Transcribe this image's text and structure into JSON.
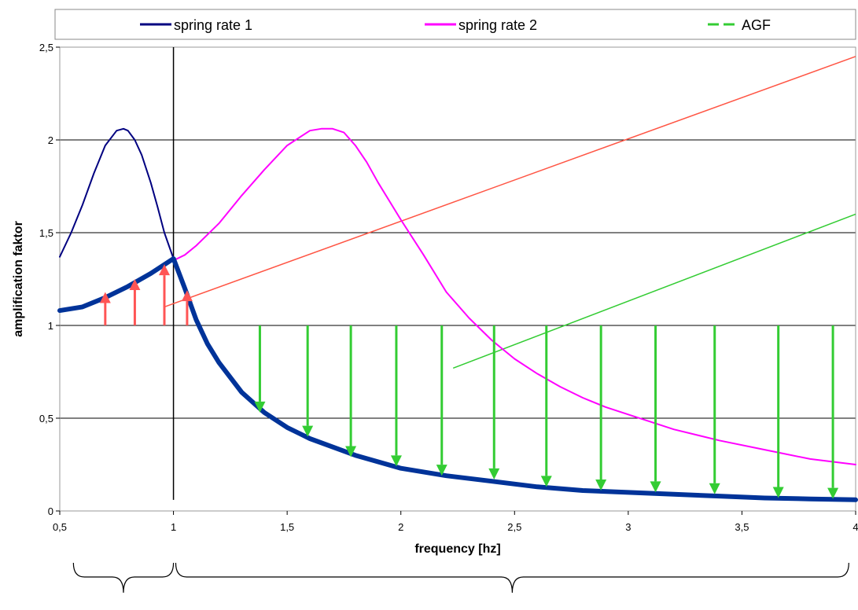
{
  "chart_data": {
    "type": "line",
    "xlabel": "frequency [hz]",
    "ylabel": "amplification faktor",
    "xlim": [
      0.5,
      4
    ],
    "ylim": [
      0,
      2.5
    ],
    "x_ticks": [
      "0,5",
      "1",
      "1,5",
      "2",
      "2,5",
      "3",
      "3,5",
      "4"
    ],
    "x_tick_values": [
      0.5,
      1,
      1.5,
      2,
      2.5,
      3,
      3.5,
      4
    ],
    "y_ticks": [
      "0",
      "0,5",
      "1",
      "1,5",
      "2",
      "2,5"
    ],
    "y_tick_values": [
      0,
      0.5,
      1,
      1.5,
      2,
      2.5
    ],
    "grid": "horizontal",
    "legend_position": "top",
    "series": [
      {
        "name": "spring rate 1",
        "color": "#000080",
        "x": [
          0.5,
          0.55,
          0.6,
          0.65,
          0.7,
          0.75,
          0.78,
          0.8,
          0.83,
          0.86,
          0.9,
          0.93,
          0.96,
          1.0
        ],
        "y": [
          1.37,
          1.5,
          1.65,
          1.82,
          1.97,
          2.05,
          2.06,
          2.05,
          2.0,
          1.92,
          1.77,
          1.64,
          1.5,
          1.36
        ]
      },
      {
        "name": "spring rate 2",
        "color": "#FF00FF",
        "x": [
          1.0,
          1.05,
          1.1,
          1.2,
          1.3,
          1.4,
          1.5,
          1.6,
          1.65,
          1.7,
          1.75,
          1.8,
          1.85,
          1.9,
          2.0,
          2.1,
          2.2,
          2.3,
          2.4,
          2.5,
          2.6,
          2.7,
          2.8,
          2.9,
          3.0,
          3.2,
          3.4,
          3.6,
          3.8,
          4.0
        ],
        "y": [
          1.35,
          1.38,
          1.43,
          1.55,
          1.7,
          1.84,
          1.97,
          2.05,
          2.06,
          2.06,
          2.04,
          1.97,
          1.88,
          1.77,
          1.57,
          1.38,
          1.18,
          1.04,
          0.92,
          0.82,
          0.74,
          0.67,
          0.61,
          0.56,
          0.52,
          0.44,
          0.38,
          0.33,
          0.28,
          0.25
        ]
      },
      {
        "name": "AGF",
        "color": "#003399",
        "dashed_legend_color": "#33CC33",
        "x": [
          0.5,
          0.6,
          0.7,
          0.8,
          0.9,
          1.0,
          1.05,
          1.1,
          1.15,
          1.2,
          1.3,
          1.4,
          1.5,
          1.6,
          1.8,
          2.0,
          2.2,
          2.4,
          2.6,
          2.8,
          3.0,
          3.2,
          3.4,
          3.6,
          3.8,
          4.0
        ],
        "y": [
          1.08,
          1.1,
          1.15,
          1.21,
          1.28,
          1.36,
          1.2,
          1.03,
          0.9,
          0.8,
          0.64,
          0.53,
          0.45,
          0.39,
          0.3,
          0.23,
          0.19,
          0.16,
          0.13,
          0.11,
          0.1,
          0.09,
          0.08,
          0.07,
          0.065,
          0.06
        ]
      }
    ],
    "reference_lines": [
      {
        "type": "vertical",
        "x": 1.0,
        "y_from": 0.06,
        "y_to": 2.5,
        "color": "#000000"
      },
      {
        "type": "trend",
        "x": [
          0.96,
          4.0
        ],
        "y": [
          1.1,
          2.45
        ],
        "color": "#FF5544"
      },
      {
        "type": "trend",
        "x": [
          2.23,
          4.0
        ],
        "y": [
          0.77,
          1.6
        ],
        "color": "#33CC33"
      }
    ],
    "arrows_up": {
      "color": "#FF5555",
      "x": [
        0.7,
        0.83,
        0.96,
        1.06
      ],
      "y_from": [
        1.0,
        1.0,
        1.0,
        1.0
      ],
      "y_to": [
        1.18,
        1.25,
        1.33,
        1.19
      ]
    },
    "arrows_down": {
      "color": "#33CC33",
      "x": [
        1.38,
        1.59,
        1.78,
        1.98,
        2.18,
        2.41,
        2.64,
        2.88,
        3.12,
        3.38,
        3.66,
        3.9
      ],
      "y_from": [
        1.0,
        1.0,
        1.0,
        1.0,
        1.0,
        1.0,
        1.0,
        1.0,
        1.0,
        1.0,
        1.0,
        1.0
      ],
      "y_to": [
        0.53,
        0.4,
        0.29,
        0.24,
        0.19,
        0.17,
        0.13,
        0.11,
        0.1,
        0.09,
        0.07,
        0.065
      ]
    },
    "braces": [
      {
        "x_from": 0.56,
        "x_to": 1.0
      },
      {
        "x_from": 1.01,
        "x_to": 3.97
      }
    ]
  }
}
